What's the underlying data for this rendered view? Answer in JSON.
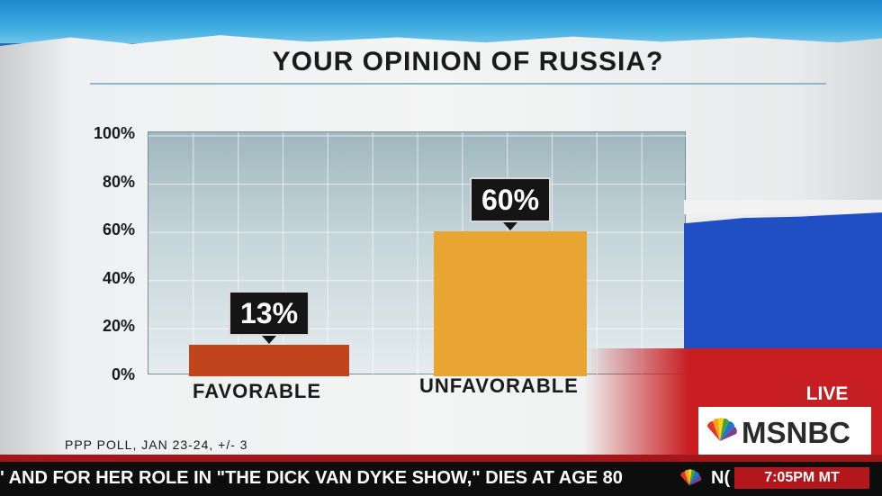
{
  "broadcast": {
    "live_label": "LIVE",
    "network": "MSNBC",
    "ticker_text": "' AND FOR HER ROLE IN \"THE DICK VAN DYKE SHOW,\" DIES AT AGE 80",
    "ticker_partial": "N(",
    "ticker_time": "7:05PM MT"
  },
  "source_note": "PPP POLL, JAN 23-24, +/- 3",
  "colors": {
    "favorable": "#c0451c",
    "unfavorable": "#e8a531",
    "flag_white": "#f2f2f2",
    "flag_blue": "#1f4fc2",
    "flag_red": "#c81e22",
    "live_red": "#c41f23"
  },
  "chart_data": {
    "type": "bar",
    "title": "YOUR OPINION OF RUSSIA?",
    "categories": [
      "FAVORABLE",
      "UNFAVORABLE"
    ],
    "values": [
      13,
      60
    ],
    "data_labels": [
      "13%",
      "60%"
    ],
    "yticks": [
      "100%",
      "80%",
      "60%",
      "40%",
      "20%",
      "0%"
    ],
    "ylim": [
      0,
      100
    ],
    "grid": true
  }
}
